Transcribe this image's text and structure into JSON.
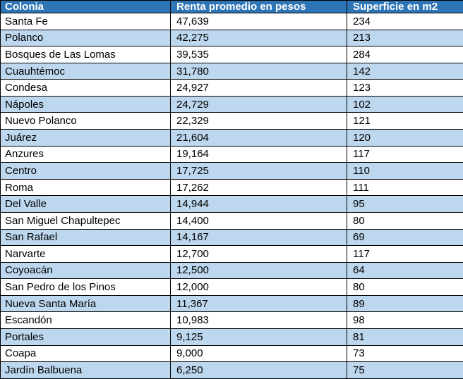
{
  "colors": {
    "header_bg": "#2E75B6",
    "header_text": "#FFFFFF",
    "row_bg": "#FFFFFF",
    "row_alt_bg": "#BDD7EE",
    "border": "#000000",
    "body_text": "#000000"
  },
  "table": {
    "columns": [
      "Colonia",
      "Renta promedio en pesos",
      "Superficie en m2"
    ],
    "rows": [
      [
        "Santa Fe",
        "47,639",
        "234"
      ],
      [
        "Polanco",
        "42,275",
        "213"
      ],
      [
        "Bosques de Las Lomas",
        "39,535",
        "284"
      ],
      [
        "Cuauhtémoc",
        "31,780",
        "142"
      ],
      [
        "Condesa",
        "24,927",
        "123"
      ],
      [
        "Nápoles",
        "24,729",
        "102"
      ],
      [
        "Nuevo Polanco",
        "22,329",
        "121"
      ],
      [
        "Juárez",
        "21,604",
        "120"
      ],
      [
        "Anzures",
        "19,164",
        "117"
      ],
      [
        "Centro",
        "17,725",
        "110"
      ],
      [
        "Roma",
        "17,262",
        "111"
      ],
      [
        "Del Valle",
        "14,944",
        "95"
      ],
      [
        "San Miguel Chapultepec",
        "14,400",
        "80"
      ],
      [
        "San Rafael",
        "14,167",
        "69"
      ],
      [
        "Narvarte",
        "12,700",
        "117"
      ],
      [
        "Coyoacán",
        "12,500",
        "64"
      ],
      [
        "San Pedro de los Pinos",
        "12,000",
        "80"
      ],
      [
        "Nueva Santa María",
        "11,367",
        "89"
      ],
      [
        "Escandón",
        "10,983",
        "98"
      ],
      [
        "Portales",
        "9,125",
        "81"
      ],
      [
        "Coapa",
        "9,000",
        "73"
      ],
      [
        "Jardín Balbuena",
        "6,250",
        "75"
      ]
    ]
  },
  "chart_data": {
    "type": "table",
    "columns": [
      "Colonia",
      "Renta promedio en pesos",
      "Superficie en m2"
    ],
    "rows": [
      {
        "colonia": "Santa Fe",
        "renta_pesos": 47639,
        "superficie_m2": 234
      },
      {
        "colonia": "Polanco",
        "renta_pesos": 42275,
        "superficie_m2": 213
      },
      {
        "colonia": "Bosques de Las Lomas",
        "renta_pesos": 39535,
        "superficie_m2": 284
      },
      {
        "colonia": "Cuauhtémoc",
        "renta_pesos": 31780,
        "superficie_m2": 142
      },
      {
        "colonia": "Condesa",
        "renta_pesos": 24927,
        "superficie_m2": 123
      },
      {
        "colonia": "Nápoles",
        "renta_pesos": 24729,
        "superficie_m2": 102
      },
      {
        "colonia": "Nuevo Polanco",
        "renta_pesos": 22329,
        "superficie_m2": 121
      },
      {
        "colonia": "Juárez",
        "renta_pesos": 21604,
        "superficie_m2": 120
      },
      {
        "colonia": "Anzures",
        "renta_pesos": 19164,
        "superficie_m2": 117
      },
      {
        "colonia": "Centro",
        "renta_pesos": 17725,
        "superficie_m2": 110
      },
      {
        "colonia": "Roma",
        "renta_pesos": 17262,
        "superficie_m2": 111
      },
      {
        "colonia": "Del Valle",
        "renta_pesos": 14944,
        "superficie_m2": 95
      },
      {
        "colonia": "San Miguel Chapultepec",
        "renta_pesos": 14400,
        "superficie_m2": 80
      },
      {
        "colonia": "San Rafael",
        "renta_pesos": 14167,
        "superficie_m2": 69
      },
      {
        "colonia": "Narvarte",
        "renta_pesos": 12700,
        "superficie_m2": 117
      },
      {
        "colonia": "Coyoacán",
        "renta_pesos": 12500,
        "superficie_m2": 64
      },
      {
        "colonia": "San Pedro de los Pinos",
        "renta_pesos": 12000,
        "superficie_m2": 80
      },
      {
        "colonia": "Nueva Santa María",
        "renta_pesos": 11367,
        "superficie_m2": 89
      },
      {
        "colonia": "Escandón",
        "renta_pesos": 10983,
        "superficie_m2": 98
      },
      {
        "colonia": "Portales",
        "renta_pesos": 9125,
        "superficie_m2": 81
      },
      {
        "colonia": "Coapa",
        "renta_pesos": 9000,
        "superficie_m2": 73
      },
      {
        "colonia": "Jardín Balbuena",
        "renta_pesos": 6250,
        "superficie_m2": 75
      }
    ]
  }
}
